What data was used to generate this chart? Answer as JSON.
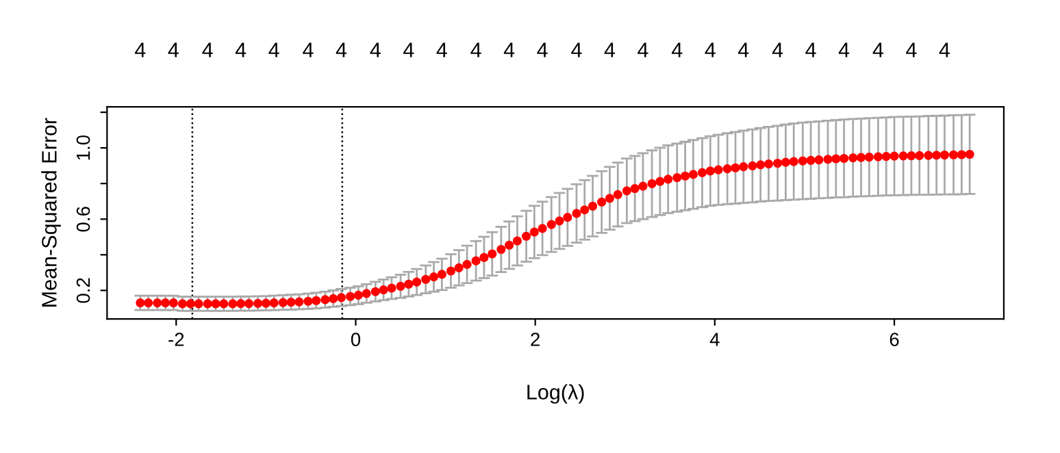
{
  "chart_data": {
    "type": "scatter",
    "xlabel": "Log(λ)",
    "ylabel": "Mean-Squared Error",
    "xlim": [
      -2.77,
      7.22
    ],
    "xticks": [
      -2,
      0,
      2,
      4,
      6
    ],
    "ylim": [
      0.04,
      1.23
    ],
    "yticks": [
      {
        "value": 0.2,
        "label": "0.2"
      },
      {
        "value": 0.4,
        "label": null
      },
      {
        "value": 0.6,
        "label": "0.6"
      },
      {
        "value": 0.8,
        "label": null
      },
      {
        "value": 1.0,
        "label": "1.0"
      },
      {
        "value": 1.2,
        "label": null
      }
    ],
    "annotations": [
      "4",
      "4",
      "4",
      "4",
      "4",
      "4",
      "4",
      "4",
      "4",
      "4",
      "4",
      "4",
      "4",
      "4",
      "4",
      "4",
      "4",
      "4",
      "4",
      "4",
      "4",
      "4",
      "4",
      "4",
      "4"
    ],
    "marker": "circle",
    "grid": false,
    "legend": false,
    "ref_lines": [
      {
        "axis": "x",
        "value": -1.82,
        "label": null,
        "color": "#000000",
        "line_style": "dotted"
      },
      {
        "axis": "x",
        "value": -0.15,
        "label": null,
        "color": "#000000",
        "line_style": "dotted"
      }
    ],
    "series": [
      {
        "color": "#ff0000",
        "x": [
          -2.4,
          -2.31,
          -2.21,
          -2.12,
          -2.03,
          -1.93,
          -1.84,
          -1.75,
          -1.65,
          -1.56,
          -1.47,
          -1.37,
          -1.28,
          -1.19,
          -1.09,
          -1.0,
          -0.91,
          -0.81,
          -0.72,
          -0.63,
          -0.53,
          -0.44,
          -0.34,
          -0.25,
          -0.16,
          -0.06,
          0.03,
          0.12,
          0.22,
          0.31,
          0.4,
          0.5,
          0.59,
          0.68,
          0.78,
          0.87,
          0.96,
          1.06,
          1.15,
          1.24,
          1.34,
          1.43,
          1.52,
          1.62,
          1.71,
          1.8,
          1.9,
          1.99,
          2.08,
          2.18,
          2.27,
          2.36,
          2.46,
          2.55,
          2.64,
          2.74,
          2.83,
          2.92,
          3.02,
          3.11,
          3.2,
          3.3,
          3.39,
          3.48,
          3.58,
          3.67,
          3.76,
          3.86,
          3.95,
          4.04,
          4.14,
          4.23,
          4.32,
          4.42,
          4.51,
          4.6,
          4.7,
          4.79,
          4.88,
          4.98,
          5.07,
          5.16,
          5.26,
          5.35,
          5.44,
          5.54,
          5.63,
          5.72,
          5.82,
          5.91,
          6.0,
          6.1,
          6.19,
          6.28,
          6.38,
          6.47,
          6.56,
          6.66,
          6.75,
          6.84
        ],
        "values": [
          0.13,
          0.13,
          0.13,
          0.13,
          0.13,
          0.125,
          0.125,
          0.125,
          0.125,
          0.125,
          0.125,
          0.125,
          0.126,
          0.126,
          0.127,
          0.128,
          0.13,
          0.132,
          0.134,
          0.136,
          0.139,
          0.143,
          0.148,
          0.154,
          0.16,
          0.166,
          0.173,
          0.183,
          0.193,
          0.203,
          0.213,
          0.223,
          0.235,
          0.247,
          0.262,
          0.276,
          0.29,
          0.309,
          0.327,
          0.346,
          0.366,
          0.385,
          0.405,
          0.43,
          0.454,
          0.478,
          0.504,
          0.528,
          0.548,
          0.57,
          0.59,
          0.61,
          0.632,
          0.652,
          0.673,
          0.696,
          0.717,
          0.738,
          0.759,
          0.772,
          0.785,
          0.799,
          0.812,
          0.824,
          0.833,
          0.842,
          0.851,
          0.861,
          0.87,
          0.877,
          0.883,
          0.888,
          0.894,
          0.899,
          0.905,
          0.91,
          0.914,
          0.919,
          0.923,
          0.927,
          0.93,
          0.933,
          0.936,
          0.939,
          0.941,
          0.944,
          0.946,
          0.948,
          0.95,
          0.952,
          0.954,
          0.955,
          0.956,
          0.957,
          0.958,
          0.959,
          0.96,
          0.961,
          0.962,
          0.964
        ],
        "errors": [
          0.04,
          0.04,
          0.04,
          0.04,
          0.04,
          0.04,
          0.04,
          0.04,
          0.04,
          0.04,
          0.04,
          0.04,
          0.04,
          0.04,
          0.04,
          0.04,
          0.041,
          0.041,
          0.042,
          0.042,
          0.043,
          0.044,
          0.045,
          0.046,
          0.048,
          0.049,
          0.05,
          0.052,
          0.055,
          0.058,
          0.061,
          0.065,
          0.069,
          0.073,
          0.078,
          0.083,
          0.088,
          0.094,
          0.099,
          0.105,
          0.111,
          0.116,
          0.122,
          0.127,
          0.133,
          0.138,
          0.143,
          0.147,
          0.15,
          0.154,
          0.157,
          0.16,
          0.164,
          0.167,
          0.17,
          0.173,
          0.176,
          0.179,
          0.181,
          0.183,
          0.185,
          0.187,
          0.189,
          0.19,
          0.191,
          0.192,
          0.193,
          0.194,
          0.195,
          0.197,
          0.199,
          0.201,
          0.203,
          0.205,
          0.206,
          0.208,
          0.21,
          0.212,
          0.214,
          0.215,
          0.216,
          0.216,
          0.217,
          0.217,
          0.218,
          0.218,
          0.218,
          0.219,
          0.219,
          0.219,
          0.22,
          0.22,
          0.22,
          0.22,
          0.221,
          0.221,
          0.221,
          0.222,
          0.222,
          0.222
        ]
      }
    ]
  }
}
